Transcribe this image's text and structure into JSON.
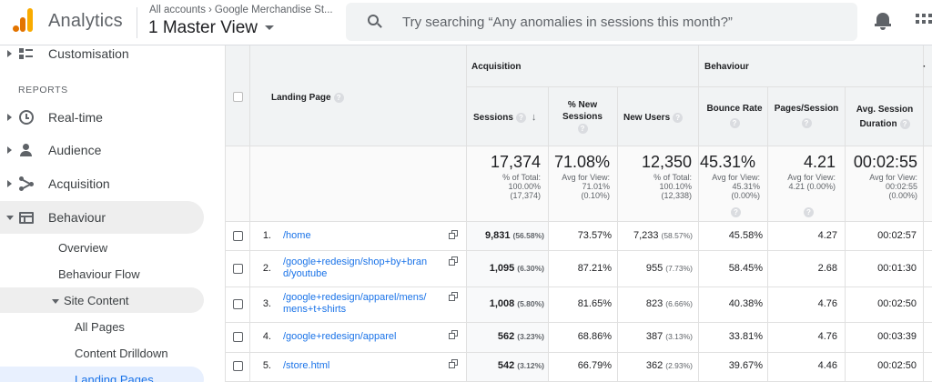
{
  "header": {
    "app_name": "Analytics",
    "breadcrumb": {
      "root": "All accounts",
      "account": "Google Merchandise St..."
    },
    "view_title": "1 Master View",
    "search_placeholder": "Try searching “Any anomalies in sessions this month?”",
    "icons": [
      "analytics-logo",
      "search-icon",
      "bell-icon",
      "apps-grid-icon"
    ]
  },
  "sidebar": {
    "top_item": "Customisation",
    "section_label": "REPORTS",
    "items": [
      {
        "label": "Real-time",
        "icon": "clock-icon"
      },
      {
        "label": "Audience",
        "icon": "person-icon"
      },
      {
        "label": "Acquisition",
        "icon": "acquisition-icon"
      },
      {
        "label": "Behaviour",
        "icon": "behaviour-icon"
      }
    ],
    "behaviour_sub": [
      "Overview",
      "Behaviour Flow"
    ],
    "site_content": "Site Content",
    "site_content_sub": [
      "All Pages",
      "Content Drilldown",
      "Landing Pages"
    ]
  },
  "table": {
    "groups": {
      "acquisition": "Acquisition",
      "behaviour": "Behaviour"
    },
    "columns": {
      "landing_page": "Landing Page",
      "sessions": "Sessions",
      "new_sessions_1": "% New",
      "new_sessions_2": "Sessions",
      "new_users": "New Users",
      "bounce_rate": "Bounce Rate",
      "pages_session": "Pages/Session",
      "avg_duration_1": "Avg. Session",
      "avg_duration_2": "Duration"
    },
    "totals": {
      "sessions": {
        "value": "17,374",
        "l1": "% of Total:",
        "l2": "100.00%",
        "l3": "(17,374)"
      },
      "new_sessions": {
        "value": "71.08%",
        "l1": "Avg for View:",
        "l2": "71.01%",
        "l3": "(0.10%)"
      },
      "new_users": {
        "value": "12,350",
        "l1": "% of Total:",
        "l2": "100.10%",
        "l3": "(12,338)"
      },
      "bounce_rate": {
        "value": "45.31%",
        "l1": "Avg for View:",
        "l2": "45.31%",
        "l3": "(0.00%)"
      },
      "pages_session": {
        "value": "4.21",
        "l1": "Avg for View:",
        "l2": "4.21 (0.00%)",
        "l3": ""
      },
      "avg_duration": {
        "value": "00:02:55",
        "l1": "Avg for View:",
        "l2": "00:02:55",
        "l3": "(0.00%)"
      }
    },
    "rows": [
      {
        "num": "1.",
        "page_l1": "/home",
        "page_l2": "",
        "sessions": "9,831",
        "sessions_pct": "(56.58%)",
        "new_sessions": "73.57%",
        "new_users": "7,233",
        "new_users_pct": "(58.57%)",
        "bounce_rate": "45.58%",
        "pages_session": "4.27",
        "avg_duration": "00:02:57"
      },
      {
        "num": "2.",
        "page_l1": "/google+redesign/shop+by+bran",
        "page_l2": "d/youtube",
        "sessions": "1,095",
        "sessions_pct": "(6.30%)",
        "new_sessions": "87.21%",
        "new_users": "955",
        "new_users_pct": "(7.73%)",
        "bounce_rate": "58.45%",
        "pages_session": "2.68",
        "avg_duration": "00:01:30"
      },
      {
        "num": "3.",
        "page_l1": "/google+redesign/apparel/mens/",
        "page_l2": "mens+t+shirts",
        "sessions": "1,008",
        "sessions_pct": "(5.80%)",
        "new_sessions": "81.65%",
        "new_users": "823",
        "new_users_pct": "(6.66%)",
        "bounce_rate": "40.38%",
        "pages_session": "4.76",
        "avg_duration": "00:02:50"
      },
      {
        "num": "4.",
        "page_l1": "/google+redesign/apparel",
        "page_l2": "",
        "sessions": "562",
        "sessions_pct": "(3.23%)",
        "new_sessions": "68.86%",
        "new_users": "387",
        "new_users_pct": "(3.13%)",
        "bounce_rate": "33.81%",
        "pages_session": "4.76",
        "avg_duration": "00:03:39"
      },
      {
        "num": "5.",
        "page_l1": "/store.html",
        "page_l2": "",
        "sessions": "542",
        "sessions_pct": "(3.12%)",
        "new_sessions": "66.79%",
        "new_users": "362",
        "new_users_pct": "(2.93%)",
        "bounce_rate": "39.67%",
        "pages_session": "4.46",
        "avg_duration": "00:02:50"
      }
    ]
  },
  "colors": {
    "link": "#1a73e8",
    "header_bg": "#f1f3f4",
    "active_nav": "#e8f0fe",
    "logo_orange": "#e37400",
    "logo_yellow": "#f9ab00"
  }
}
